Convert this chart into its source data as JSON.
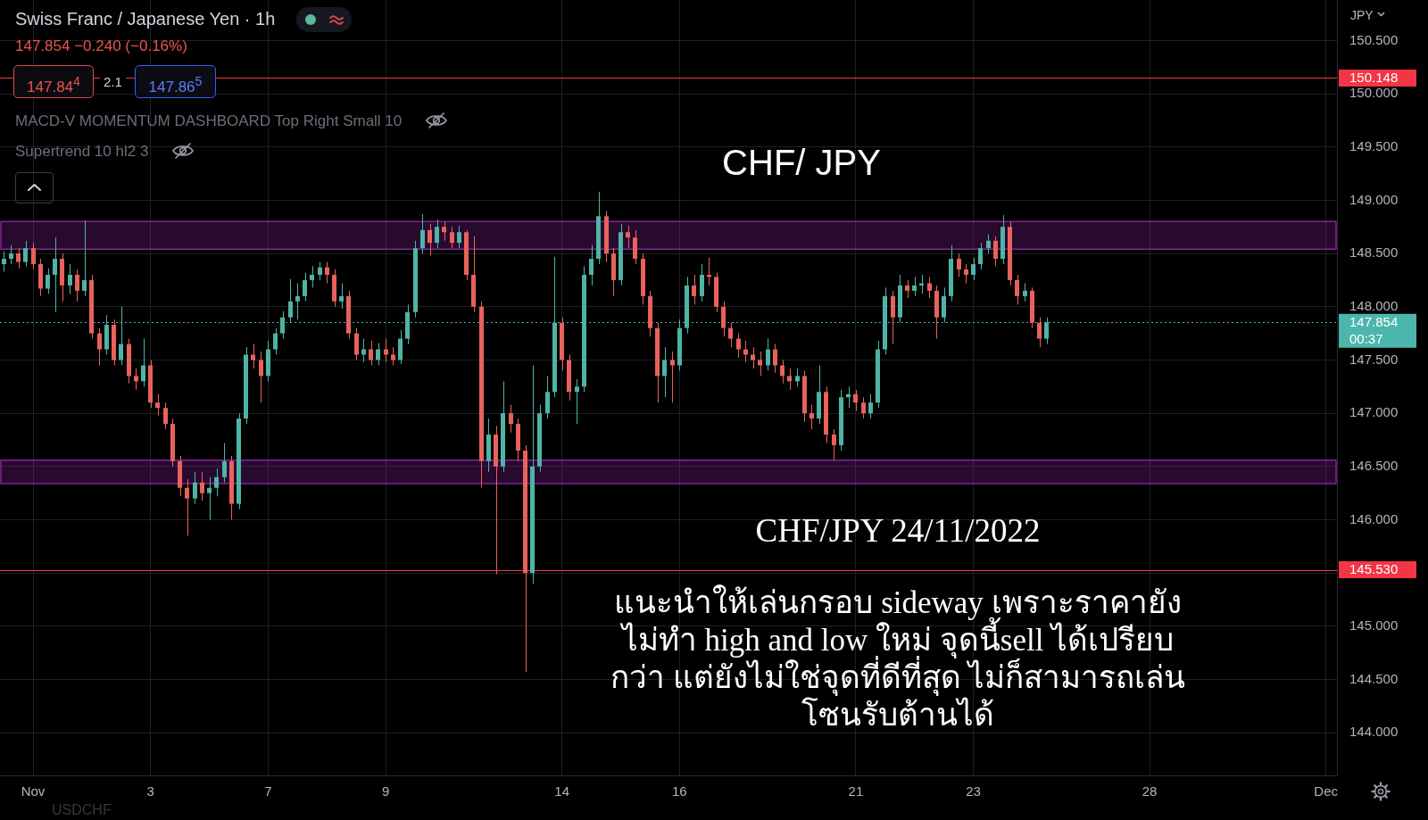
{
  "chart_data": {
    "type": "candlestick",
    "title": "CHF/ JPY",
    "subtitle": "Swiss Franc / Japanese Yen · 1h",
    "ylabel": "JPY",
    "categories": [
      null,
      null,
      null,
      null,
      "Nov",
      null,
      null,
      null,
      null,
      null,
      null,
      null,
      null,
      null,
      null,
      null,
      null,
      null,
      null,
      null,
      "3",
      null,
      null,
      null,
      null,
      null,
      null,
      null,
      null,
      null,
      null,
      null,
      null,
      null,
      null,
      null,
      "7",
      null,
      null,
      null,
      null,
      null,
      null,
      null,
      null,
      null,
      null,
      null,
      null,
      null,
      null,
      null,
      "9",
      null,
      null,
      null,
      null,
      null,
      null,
      null,
      null,
      null,
      null,
      null,
      null,
      null,
      null,
      null,
      null,
      null,
      null,
      null,
      null,
      null,
      null,
      null,
      "14",
      null,
      null,
      null,
      null,
      null,
      null,
      null,
      null,
      null,
      null,
      null,
      null,
      null,
      null,
      null,
      "16",
      null,
      null,
      null,
      null,
      null,
      null,
      null,
      null,
      null,
      null,
      null,
      null,
      null,
      null,
      null,
      null,
      null,
      null,
      null,
      null,
      null,
      null,
      null,
      "21",
      null,
      null,
      null,
      null,
      null,
      null,
      null,
      null,
      null,
      null,
      null,
      null,
      null,
      null,
      null,
      "23",
      null,
      null,
      null,
      null,
      null,
      null,
      null,
      null,
      null,
      null,
      null,
      null,
      null,
      null,
      null,
      null,
      null,
      null,
      null,
      null,
      null,
      null,
      null,
      "28",
      null,
      null,
      null,
      null,
      null,
      null,
      null,
      null,
      null,
      null,
      null,
      null,
      null,
      null,
      null,
      null,
      null,
      null,
      null,
      null,
      null,
      null,
      null,
      "Dec",
      null
    ],
    "ohlc": [
      [
        148.4,
        148.52,
        148.33,
        148.45
      ],
      [
        148.45,
        148.58,
        148.4,
        148.5
      ],
      [
        148.5,
        148.55,
        148.36,
        148.42
      ],
      [
        148.42,
        148.62,
        148.38,
        148.55
      ],
      [
        148.55,
        148.6,
        148.35,
        148.4
      ],
      [
        148.4,
        148.45,
        148.1,
        148.17
      ],
      [
        148.17,
        148.36,
        148.12,
        148.3
      ],
      [
        148.3,
        148.65,
        147.95,
        148.45
      ],
      [
        148.45,
        148.5,
        148.05,
        148.2
      ],
      [
        148.2,
        148.4,
        148.12,
        148.3
      ],
      [
        148.3,
        148.35,
        148.05,
        148.15
      ],
      [
        148.15,
        148.81,
        148.1,
        148.25
      ],
      [
        148.25,
        148.3,
        147.7,
        147.75
      ],
      [
        147.75,
        147.8,
        147.45,
        147.6
      ],
      [
        147.6,
        147.92,
        147.55,
        147.83
      ],
      [
        147.83,
        147.88,
        147.45,
        147.5
      ],
      [
        147.5,
        148.0,
        147.45,
        147.65
      ],
      [
        147.65,
        147.7,
        147.28,
        147.35
      ],
      [
        147.35,
        147.42,
        147.22,
        147.3
      ],
      [
        147.3,
        147.7,
        147.25,
        147.45
      ],
      [
        147.45,
        147.5,
        147.05,
        147.1
      ],
      [
        147.1,
        147.18,
        146.98,
        147.05
      ],
      [
        147.05,
        147.1,
        146.85,
        146.9
      ],
      [
        146.9,
        146.95,
        146.5,
        146.55
      ],
      [
        146.55,
        146.6,
        146.22,
        146.3
      ],
      [
        146.3,
        146.38,
        145.85,
        146.2
      ],
      [
        146.2,
        146.45,
        146.15,
        146.35
      ],
      [
        146.35,
        146.45,
        146.18,
        146.25
      ],
      [
        146.25,
        146.4,
        146.0,
        146.3
      ],
      [
        146.3,
        146.48,
        146.22,
        146.4
      ],
      [
        146.4,
        146.72,
        146.35,
        146.55
      ],
      [
        146.55,
        146.6,
        146.0,
        146.15
      ],
      [
        146.15,
        147.0,
        146.1,
        146.95
      ],
      [
        146.95,
        147.62,
        146.9,
        147.55
      ],
      [
        147.55,
        147.65,
        147.42,
        147.5
      ],
      [
        147.5,
        147.58,
        147.1,
        147.35
      ],
      [
        147.35,
        147.68,
        147.3,
        147.6
      ],
      [
        147.6,
        147.8,
        147.55,
        147.75
      ],
      [
        147.75,
        147.96,
        147.7,
        147.9
      ],
      [
        147.9,
        148.26,
        147.85,
        148.05
      ],
      [
        148.05,
        148.22,
        147.88,
        148.1
      ],
      [
        148.1,
        148.32,
        148.05,
        148.25
      ],
      [
        148.25,
        148.38,
        148.18,
        148.3
      ],
      [
        148.3,
        148.42,
        148.25,
        148.37
      ],
      [
        148.37,
        148.42,
        148.22,
        148.3
      ],
      [
        148.3,
        148.35,
        148.0,
        148.05
      ],
      [
        148.05,
        148.22,
        147.98,
        148.1
      ],
      [
        148.1,
        148.15,
        147.7,
        147.75
      ],
      [
        147.75,
        147.8,
        147.5,
        147.55
      ],
      [
        147.55,
        147.7,
        147.48,
        147.6
      ],
      [
        147.6,
        147.68,
        147.45,
        147.5
      ],
      [
        147.5,
        147.66,
        147.45,
        147.6
      ],
      [
        147.6,
        147.7,
        147.48,
        147.55
      ],
      [
        147.55,
        147.62,
        147.45,
        147.5
      ],
      [
        147.5,
        147.78,
        147.46,
        147.7
      ],
      [
        147.7,
        148.02,
        147.65,
        147.95
      ],
      [
        147.95,
        148.62,
        147.9,
        148.55
      ],
      [
        148.55,
        148.87,
        148.5,
        148.72
      ],
      [
        148.72,
        148.78,
        148.48,
        148.6
      ],
      [
        148.6,
        148.82,
        148.55,
        148.75
      ],
      [
        148.75,
        148.8,
        148.62,
        148.7
      ],
      [
        148.7,
        148.75,
        148.55,
        148.6
      ],
      [
        148.6,
        148.76,
        148.55,
        148.7
      ],
      [
        148.7,
        148.72,
        148.25,
        148.3
      ],
      [
        148.3,
        148.66,
        147.95,
        148.0
      ],
      [
        148.0,
        148.05,
        146.3,
        146.55
      ],
      [
        146.55,
        146.95,
        146.45,
        146.8
      ],
      [
        146.8,
        146.88,
        145.49,
        146.5
      ],
      [
        146.5,
        147.3,
        146.45,
        147.0
      ],
      [
        147.0,
        147.08,
        146.82,
        146.9
      ],
      [
        146.9,
        146.95,
        146.55,
        146.65
      ],
      [
        146.65,
        146.7,
        144.57,
        145.5
      ],
      [
        145.5,
        147.45,
        145.4,
        146.5
      ],
      [
        146.5,
        147.08,
        146.45,
        147.0
      ],
      [
        147.0,
        147.35,
        146.95,
        147.2
      ],
      [
        147.2,
        148.47,
        147.15,
        147.85
      ],
      [
        147.85,
        147.9,
        147.4,
        147.5
      ],
      [
        147.5,
        147.55,
        147.12,
        147.2
      ],
      [
        147.2,
        147.32,
        146.9,
        147.25
      ],
      [
        147.25,
        148.38,
        147.2,
        148.3
      ],
      [
        148.3,
        148.58,
        148.2,
        148.45
      ],
      [
        148.45,
        149.08,
        148.4,
        148.85
      ],
      [
        148.85,
        148.9,
        148.42,
        148.5
      ],
      [
        148.5,
        148.55,
        148.1,
        148.25
      ],
      [
        148.25,
        148.78,
        148.2,
        148.7
      ],
      [
        148.7,
        148.76,
        148.55,
        148.65
      ],
      [
        148.65,
        148.72,
        148.4,
        148.45
      ],
      [
        148.45,
        148.5,
        148.02,
        148.1
      ],
      [
        148.1,
        148.15,
        147.72,
        147.8
      ],
      [
        147.8,
        147.85,
        147.1,
        147.35
      ],
      [
        147.35,
        147.62,
        147.15,
        147.5
      ],
      [
        147.5,
        147.58,
        147.1,
        147.45
      ],
      [
        147.45,
        147.88,
        147.4,
        147.8
      ],
      [
        147.8,
        148.28,
        147.75,
        148.2
      ],
      [
        148.2,
        148.3,
        148.02,
        148.1
      ],
      [
        148.1,
        148.4,
        148.05,
        148.3
      ],
      [
        148.3,
        148.46,
        148.2,
        148.28
      ],
      [
        148.28,
        148.32,
        147.95,
        148.0
      ],
      [
        148.0,
        148.05,
        147.72,
        147.8
      ],
      [
        147.8,
        147.85,
        147.62,
        147.7
      ],
      [
        147.7,
        147.75,
        147.52,
        147.6
      ],
      [
        147.6,
        147.68,
        147.48,
        147.55
      ],
      [
        147.55,
        147.62,
        147.42,
        147.5
      ],
      [
        147.5,
        147.58,
        147.35,
        147.45
      ],
      [
        147.45,
        147.7,
        147.4,
        147.6
      ],
      [
        147.6,
        147.65,
        147.38,
        147.45
      ],
      [
        147.45,
        147.5,
        147.28,
        147.35
      ],
      [
        147.35,
        147.42,
        147.22,
        147.3
      ],
      [
        147.3,
        147.42,
        147.25,
        147.35
      ],
      [
        147.35,
        147.4,
        146.92,
        147.0
      ],
      [
        147.0,
        147.08,
        146.85,
        146.95
      ],
      [
        146.95,
        147.45,
        146.9,
        147.2
      ],
      [
        147.2,
        147.25,
        146.72,
        146.8
      ],
      [
        146.8,
        146.85,
        146.56,
        146.7
      ],
      [
        146.7,
        147.22,
        146.65,
        147.15
      ],
      [
        147.15,
        147.25,
        147.05,
        147.18
      ],
      [
        147.18,
        147.22,
        147.02,
        147.1
      ],
      [
        147.1,
        147.15,
        146.95,
        147.0
      ],
      [
        147.0,
        147.18,
        146.95,
        147.1
      ],
      [
        147.1,
        147.68,
        147.05,
        147.6
      ],
      [
        147.6,
        148.18,
        147.55,
        148.1
      ],
      [
        148.1,
        148.15,
        147.65,
        147.9
      ],
      [
        147.9,
        148.3,
        147.85,
        148.2
      ],
      [
        148.2,
        148.25,
        148.08,
        148.15
      ],
      [
        148.15,
        148.28,
        148.1,
        148.2
      ],
      [
        148.2,
        148.3,
        148.12,
        148.22
      ],
      [
        148.22,
        148.28,
        148.08,
        148.15
      ],
      [
        148.15,
        148.2,
        147.7,
        147.9
      ],
      [
        147.9,
        148.18,
        147.85,
        148.1
      ],
      [
        148.1,
        148.58,
        148.05,
        148.45
      ],
      [
        148.45,
        148.5,
        148.28,
        148.35
      ],
      [
        148.35,
        148.4,
        148.22,
        148.3
      ],
      [
        148.3,
        148.46,
        148.25,
        148.4
      ],
      [
        148.4,
        148.6,
        148.35,
        148.55
      ],
      [
        148.55,
        148.68,
        148.5,
        148.62
      ],
      [
        148.62,
        148.66,
        148.38,
        148.45
      ],
      [
        148.45,
        148.86,
        148.4,
        148.75
      ],
      [
        148.75,
        148.8,
        148.2,
        148.25
      ],
      [
        148.25,
        148.3,
        148.02,
        148.1
      ],
      [
        148.1,
        148.22,
        148.05,
        148.15
      ],
      [
        148.15,
        148.18,
        147.8,
        147.85
      ],
      [
        147.85,
        147.9,
        147.62,
        147.7
      ],
      [
        147.7,
        147.9,
        147.65,
        147.854
      ],
      null,
      null,
      null,
      null,
      null,
      null,
      null,
      null,
      null,
      null,
      null,
      null,
      null,
      null,
      null,
      null,
      null,
      null,
      null,
      null,
      null,
      null,
      null,
      null,
      null,
      null,
      null,
      null,
      null,
      null,
      null,
      null,
      null,
      null,
      null,
      null,
      null,
      null,
      null
    ],
    "colors": [
      "#4fb3a5",
      "#4fb3a5",
      "#e8625c",
      "#4fb3a5",
      "#e8625c",
      "#e8625c",
      "#4fb3a5",
      "#4fb3a5",
      "#e8625c",
      "#4fb3a5",
      "#e8625c",
      "#4fb3a5",
      "#e8625c",
      "#e8625c",
      "#4fb3a5",
      "#e8625c",
      "#4fb3a5",
      "#e8625c",
      "#e8625c",
      "#4fb3a5",
      "#e8625c",
      "#e8625c",
      "#e8625c",
      "#e8625c",
      "#e8625c",
      "#e8625c",
      "#4fb3a5",
      "#e8625c",
      "#4fb3a5",
      "#4fb3a5",
      "#4fb3a5",
      "#e8625c",
      "#4fb3a5",
      "#4fb3a5",
      "#e8625c",
      "#e8625c",
      "#4fb3a5",
      "#4fb3a5",
      "#4fb3a5",
      "#4fb3a5",
      "#4fb3a5",
      "#4fb3a5",
      "#4fb3a5",
      "#4fb3a5",
      "#e8625c",
      "#e8625c",
      "#4fb3a5",
      "#e8625c",
      "#e8625c",
      "#4fb3a5",
      "#e8625c",
      "#4fb3a5",
      "#e8625c",
      "#e8625c",
      "#4fb3a5",
      "#4fb3a5",
      "#4fb3a5",
      "#4fb3a5",
      "#e8625c",
      "#4fb3a5",
      "#e8625c",
      "#e8625c",
      "#4fb3a5",
      "#e8625c",
      "#e8625c",
      "#e8625c",
      "#4fb3a5",
      "#e8625c",
      "#4fb3a5",
      "#e8625c",
      "#e8625c",
      "#e8625c",
      "#4fb3a5",
      "#4fb3a5",
      "#4fb3a5",
      "#4fb3a5",
      "#e8625c",
      "#e8625c",
      "#4fb3a5",
      "#4fb3a5",
      "#4fb3a5",
      "#4fb3a5",
      "#e8625c",
      "#e8625c",
      "#4fb3a5",
      "#e8625c",
      "#e8625c",
      "#e8625c",
      "#e8625c",
      "#e8625c",
      "#4fb3a5",
      "#e8625c",
      "#4fb3a5",
      "#4fb3a5",
      "#e8625c",
      "#4fb3a5",
      "#e8625c",
      "#e8625c",
      "#e8625c",
      "#e8625c",
      "#e8625c",
      "#e8625c",
      "#e8625c",
      "#e8625c",
      "#4fb3a5",
      "#e8625c",
      "#e8625c",
      "#e8625c",
      "#4fb3a5",
      "#e8625c",
      "#e8625c",
      "#4fb3a5",
      "#e8625c",
      "#e8625c",
      "#4fb3a5",
      "#4fb3a5",
      "#e8625c",
      "#e8625c",
      "#4fb3a5",
      "#4fb3a5",
      "#4fb3a5",
      "#e8625c",
      "#4fb3a5",
      "#e8625c",
      "#4fb3a5",
      "#4fb3a5",
      "#e8625c",
      "#e8625c",
      "#4fb3a5",
      "#4fb3a5",
      "#e8625c",
      "#e8625c",
      "#4fb3a5",
      "#4fb3a5",
      "#4fb3a5",
      "#e8625c",
      "#4fb3a5",
      "#e8625c",
      "#e8625c",
      "#4fb3a5",
      "#e8625c",
      "#e8625c",
      "#4fb3a5",
      null,
      null,
      null,
      null,
      null,
      null,
      null,
      null,
      null,
      null,
      null,
      null,
      null,
      null,
      null,
      null,
      null,
      null,
      null,
      null,
      null,
      null,
      null,
      null,
      null,
      null,
      null,
      null,
      null,
      null,
      null,
      null,
      null,
      null,
      null,
      null,
      null,
      null,
      null
    ],
    "ylim": [
      143.6,
      150.88
    ],
    "yticks": [
      {
        "value": 144,
        "label": "144.000"
      },
      {
        "value": 144.5,
        "label": "144.500"
      },
      {
        "value": 145,
        "label": "145.000"
      },
      {
        "value": 145.5,
        "label": null
      },
      {
        "value": 146,
        "label": "146.000"
      },
      {
        "value": 146.5,
        "label": "146.500"
      },
      {
        "value": 147,
        "label": "147.000"
      },
      {
        "value": 147.5,
        "label": "147.500"
      },
      {
        "value": 148,
        "label": "148.000"
      },
      {
        "value": 148.5,
        "label": "148.500"
      },
      {
        "value": 149,
        "label": "149.000"
      },
      {
        "value": 149.5,
        "label": "149.500"
      },
      {
        "value": 150,
        "label": "150.000"
      },
      {
        "value": 150.5,
        "label": "150.500"
      }
    ],
    "grid": true,
    "bands": [
      {
        "axis": "y",
        "from": 148.54,
        "to": 148.8,
        "color": "#9c27b0"
      },
      {
        "axis": "y",
        "from": 146.34,
        "to": 146.56,
        "color": "#9c27b0"
      }
    ],
    "ref_lines": [
      {
        "axis": "y",
        "value": 150.148,
        "label": "150.148",
        "color": "#f23645",
        "line_style": "solid"
      },
      {
        "axis": "y",
        "value": 145.53,
        "label": "145.530",
        "color": "#f23645",
        "line_style": "solid"
      },
      {
        "axis": "y",
        "value": 147.854,
        "label": "147.854\n00:37",
        "color": "#4db6ac",
        "line_style": "dotted"
      }
    ],
    "annotations": [
      "147.854 −0.240 (−0.16%)",
      "147.84$^{4}$",
      "2.1",
      "147.86$^{5}$",
      "MACD-V MOMENTUM DASHBOARD Top Right Small 10",
      "Supertrend 10 hl2 3",
      "CHF/JPY 24/11/2022",
      "แนะนำให้เล่นกรอบ sideway เพราะราคายัง\nไม่ทำ high and low ใหม่ จุดนี้sell ได้เปรียบ\nกว่า แต่ยังไม่ใช่จุดที่ดีที่สุด ไม่ก็สามารถเล่น\nโซนรับต้านได้",
      "USDCHF"
    ]
  }
}
